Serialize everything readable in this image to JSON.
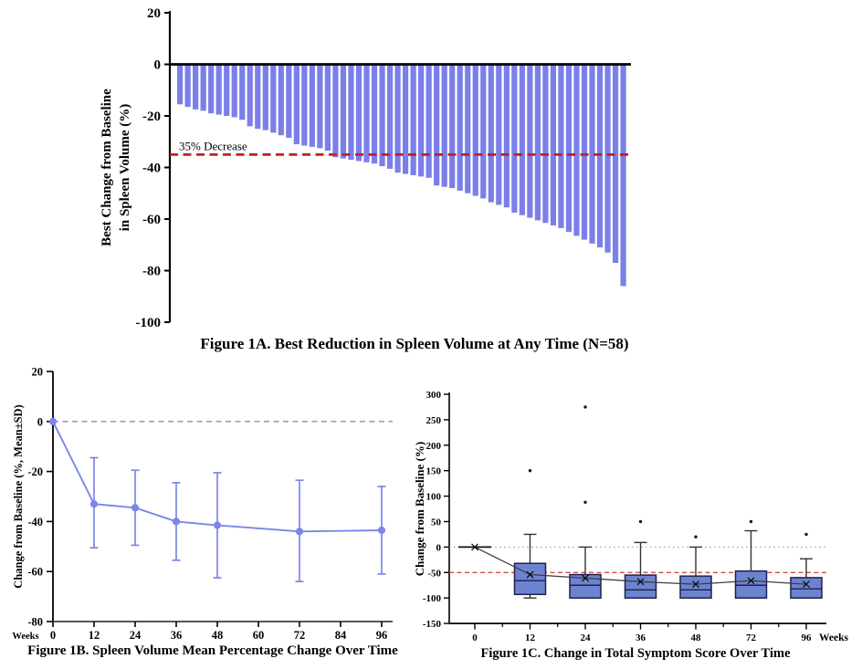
{
  "chart_data": [
    {
      "id": "figure-1a",
      "type": "bar",
      "title": "Figure 1A. Best Reduction in Spleen Volume at Any Time (N=58)",
      "ylabel_line1": "Best Change from Baseline",
      "ylabel_line2": "in Spleen Volume (%)",
      "ylim": [
        -100,
        20
      ],
      "yticks": [
        20,
        0,
        -20,
        -40,
        -60,
        -80,
        -100
      ],
      "bar_color": "#7b7fe8",
      "reference_line": {
        "value": -35,
        "label": "35% Decrease",
        "color": "#c41f1f",
        "style": "dashed"
      },
      "n": 58,
      "values": [
        -15.5,
        -16.5,
        -17.5,
        -18,
        -19,
        -19.5,
        -20,
        -20.5,
        -21.5,
        -24,
        -25,
        -25.5,
        -26.5,
        -27.5,
        -28.5,
        -31,
        -31.5,
        -32,
        -32.5,
        -33.5,
        -36,
        -36.5,
        -37,
        -37.5,
        -38,
        -38.5,
        -39.5,
        -40.5,
        -42,
        -42.5,
        -43,
        -43.5,
        -44,
        -47,
        -47.5,
        -48,
        -49,
        -50,
        -51,
        -52,
        -53.5,
        -54.5,
        -55.5,
        -57.5,
        -58.5,
        -59.5,
        -60.5,
        -61.5,
        -62.5,
        -63.5,
        -65,
        -66.5,
        -68,
        -69.5,
        -71,
        -73,
        -77,
        -86
      ]
    },
    {
      "id": "figure-1b",
      "type": "line",
      "title": "Figure 1B. Spleen Volume Mean Percentage Change Over Time",
      "ylabel": "Change from Baseline (%, Mean±SD)",
      "xlabel": "Weeks",
      "ylim": [
        -80,
        20
      ],
      "yticks": [
        20,
        0,
        -20,
        -40,
        -60,
        -80
      ],
      "xticks": [
        0,
        12,
        24,
        36,
        48,
        60,
        72,
        84,
        96
      ],
      "line_color": "#7b86e8",
      "zero_line_color": "#909090",
      "x": [
        0,
        12,
        24,
        36,
        48,
        72,
        96
      ],
      "mean": [
        0,
        -33,
        -34.5,
        -40,
        -41.5,
        -44,
        -43.5
      ],
      "sd_upper": [
        0,
        -14.5,
        -19.5,
        -24.5,
        -20.5,
        -23.5,
        -26
      ],
      "sd_lower": [
        0,
        -50.5,
        -49.5,
        -55.5,
        -62.5,
        -64,
        -61
      ]
    },
    {
      "id": "figure-1c",
      "type": "boxplot",
      "title": "Figure 1C. Change in Total Symptom Score Over Time",
      "ylabel": "Change from Baseline (%)",
      "xlabel": "Weeks",
      "ylim": [
        -150,
        300
      ],
      "yticks": [
        300,
        250,
        200,
        150,
        100,
        50,
        0,
        -50,
        -100,
        -150
      ],
      "xticks": [
        0,
        12,
        24,
        36,
        48,
        72,
        96
      ],
      "box_fill": "#6c83d0",
      "box_stroke": "#20204c",
      "whisker_color": "#333333",
      "mean_line_color": "#3c3c3c",
      "zero_line_color": "#b3b3b3",
      "reference_line": {
        "value": -50,
        "color": "#d84a4a",
        "style": "dashed"
      },
      "baseline": {
        "week": 0,
        "value": 0
      },
      "boxes": [
        {
          "week": 12,
          "whisker_high": 25,
          "q3": -32,
          "mean": -54,
          "median": -66,
          "q1": -93,
          "whisker_low": -100,
          "outliers": [
            150
          ]
        },
        {
          "week": 24,
          "whisker_high": 0,
          "q3": -54,
          "mean": -61,
          "median": -75,
          "q1": -100,
          "whisker_low": -100,
          "outliers": [
            275,
            88
          ]
        },
        {
          "week": 36,
          "whisker_high": 9,
          "q3": -55,
          "mean": -68,
          "median": -84,
          "q1": -100,
          "whisker_low": -100,
          "outliers": [
            50
          ]
        },
        {
          "week": 48,
          "whisker_high": 0,
          "q3": -57,
          "mean": -73,
          "median": -84,
          "q1": -100,
          "whisker_low": -100,
          "outliers": [
            20
          ]
        },
        {
          "week": 72,
          "whisker_high": 32,
          "q3": -47,
          "mean": -66,
          "median": -75,
          "q1": -100,
          "whisker_low": -100,
          "outliers": [
            50
          ]
        },
        {
          "week": 96,
          "whisker_high": -23,
          "q3": -60,
          "mean": -73,
          "median": -82,
          "q1": -100,
          "whisker_low": -100,
          "outliers": [
            25
          ]
        }
      ]
    }
  ]
}
